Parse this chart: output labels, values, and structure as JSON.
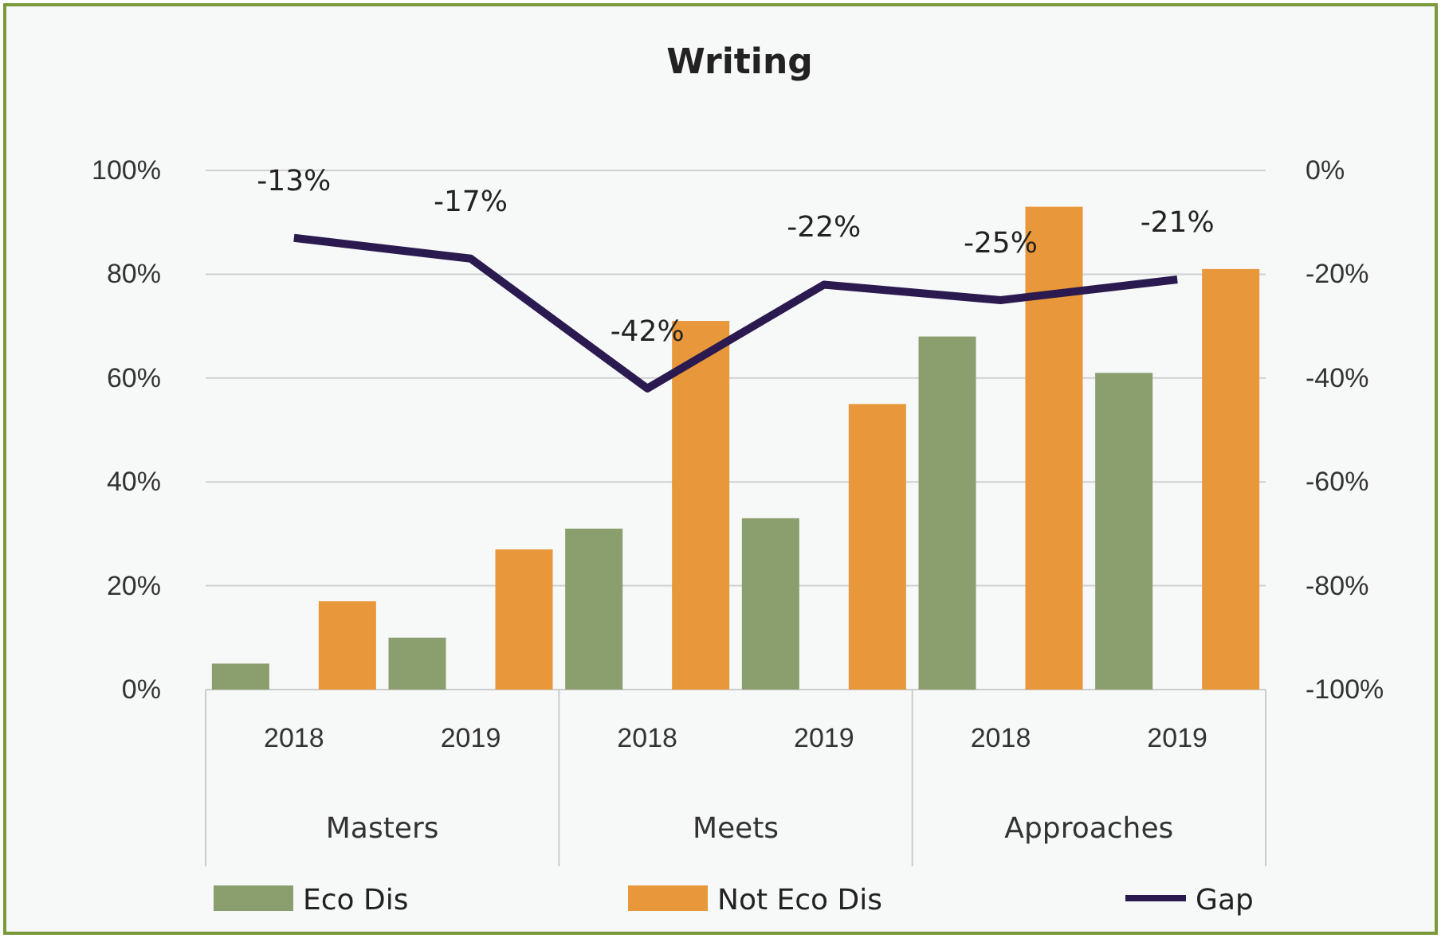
{
  "chart_data": {
    "type": "bar",
    "title": "Writing",
    "categories": [
      "2018",
      "2019",
      "2018",
      "2019",
      "2018",
      "2019"
    ],
    "annotations": [
      "Masters",
      "Meets",
      "Approaches"
    ],
    "series": [
      {
        "name": "Eco Dis",
        "color": "#8a9e6e",
        "values": [
          5,
          10,
          31,
          33,
          68,
          61
        ]
      },
      {
        "name": "Not Eco Dis",
        "color": "#e8973a",
        "values": [
          17,
          27,
          71,
          55,
          93,
          81
        ]
      },
      {
        "name": "Gap",
        "type": "line",
        "axis": "y2",
        "color": "#2b1a4f",
        "values": [
          -13,
          -17,
          -42,
          -22,
          -25,
          -21
        ],
        "value_labels": [
          "-13%",
          "-17%",
          "-42%",
          "-22%",
          "-25%",
          "-21%"
        ]
      }
    ],
    "ylim": [
      0,
      100
    ],
    "yticks": [
      {
        "value": 0,
        "label": "0%"
      },
      {
        "value": 20,
        "label": "20%"
      },
      {
        "value": 40,
        "label": "40%"
      },
      {
        "value": 60,
        "label": "60%"
      },
      {
        "value": 80,
        "label": "80%"
      },
      {
        "value": 100,
        "label": "100%"
      }
    ],
    "y2lim": [
      -100,
      0
    ],
    "y2ticks": [
      {
        "value": -100,
        "label": "-100%"
      },
      {
        "value": -80,
        "label": "-80%"
      },
      {
        "value": -60,
        "label": "-60%"
      },
      {
        "value": -40,
        "label": "-40%"
      },
      {
        "value": -20,
        "label": "-20%"
      },
      {
        "value": 0,
        "label": "0%"
      }
    ],
    "grid": "y",
    "legend": "bottom",
    "marker": "none",
    "line_style": "solid"
  }
}
